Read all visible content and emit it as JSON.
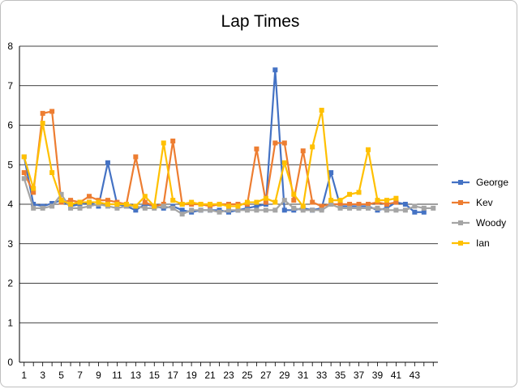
{
  "chart_data": {
    "type": "line",
    "title": "Lap Times",
    "xlabel": "",
    "ylabel": "",
    "ylim": [
      0,
      8
    ],
    "y_ticks": [
      0,
      1,
      2,
      3,
      4,
      5,
      6,
      7,
      8
    ],
    "x": [
      1,
      2,
      3,
      4,
      5,
      6,
      7,
      8,
      9,
      10,
      11,
      12,
      13,
      14,
      15,
      16,
      17,
      18,
      19,
      20,
      21,
      22,
      23,
      24,
      25,
      26,
      27,
      28,
      29,
      30,
      31,
      32,
      33,
      34,
      35,
      36,
      37,
      38,
      39,
      40,
      41,
      42,
      43,
      44,
      45
    ],
    "x_tick_labels": [
      "1",
      "3",
      "5",
      "7",
      "9",
      "11",
      "13",
      "15",
      "17",
      "19",
      "21",
      "23",
      "25",
      "27",
      "29",
      "31",
      "33",
      "35",
      "37",
      "39",
      "41",
      "43"
    ],
    "grid": "horizontal",
    "legend_position": "right",
    "series": [
      {
        "name": "George",
        "color": "#4472c4",
        "marker": "square",
        "values": [
          5.2,
          4.0,
          3.95,
          4.02,
          4.1,
          3.95,
          4.0,
          4.05,
          3.95,
          5.05,
          4.0,
          3.95,
          3.85,
          4.0,
          3.95,
          3.9,
          3.95,
          3.85,
          3.8,
          3.85,
          3.85,
          3.85,
          3.8,
          3.85,
          3.9,
          3.95,
          4.0,
          7.4,
          3.85,
          3.85,
          3.9,
          3.85,
          3.9,
          4.8,
          3.95,
          3.95,
          3.95,
          3.95,
          3.85,
          3.9,
          4.05,
          4.0,
          3.8,
          3.8,
          null
        ]
      },
      {
        "name": "Kev",
        "color": "#ed7d31",
        "marker": "square",
        "values": [
          4.8,
          4.3,
          6.3,
          6.35,
          4.05,
          4.1,
          4.05,
          4.2,
          4.1,
          4.1,
          4.05,
          4.0,
          5.2,
          4.05,
          3.95,
          4.0,
          5.6,
          4.0,
          4.0,
          4.0,
          3.95,
          4.0,
          4.0,
          4.0,
          4.0,
          5.4,
          4.05,
          5.55,
          5.55,
          4.1,
          5.35,
          4.05,
          3.95,
          4.0,
          4.0,
          4.0,
          4.0,
          4.0,
          4.05,
          4.0,
          4.05,
          null,
          null,
          null,
          null
        ]
      },
      {
        "name": "Woody",
        "color": "#a5a5a5",
        "marker": "square",
        "values": [
          4.65,
          3.9,
          3.9,
          3.95,
          4.25,
          3.9,
          3.9,
          3.95,
          4.0,
          3.95,
          3.9,
          3.95,
          3.95,
          3.9,
          3.9,
          3.95,
          3.9,
          3.75,
          3.85,
          3.85,
          3.85,
          3.8,
          3.85,
          3.85,
          3.85,
          3.85,
          3.85,
          3.85,
          4.1,
          3.9,
          3.85,
          3.85,
          3.85,
          4.0,
          3.9,
          3.9,
          3.9,
          3.9,
          3.9,
          3.85,
          3.85,
          3.85,
          3.95,
          3.9,
          3.9
        ]
      },
      {
        "name": "Ian",
        "color": "#ffc000",
        "marker": "square",
        "values": [
          5.2,
          4.4,
          6.05,
          4.8,
          4.1,
          4.0,
          4.05,
          4.05,
          4.05,
          4.0,
          4.0,
          4.0,
          3.95,
          4.2,
          3.95,
          5.55,
          4.1,
          4.0,
          4.05,
          4.0,
          4.0,
          4.0,
          3.95,
          3.95,
          4.05,
          4.05,
          4.15,
          4.05,
          5.05,
          4.25,
          3.95,
          5.45,
          6.38,
          4.1,
          4.1,
          4.25,
          4.3,
          5.38,
          4.1,
          4.1,
          4.15,
          null,
          null,
          null,
          null
        ]
      }
    ]
  }
}
